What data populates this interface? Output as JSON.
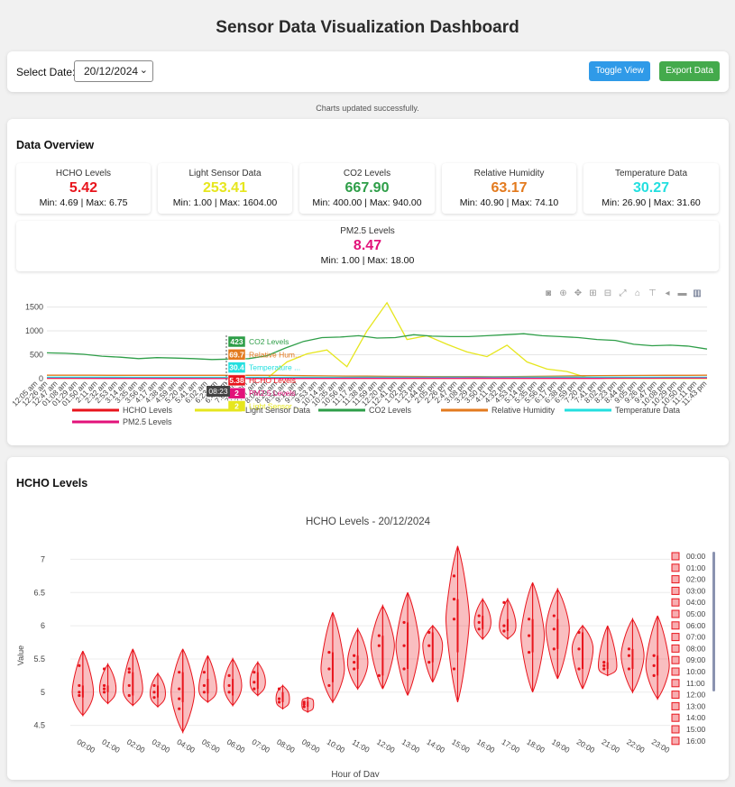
{
  "page": {
    "title": "Sensor Data Visualization Dashboard",
    "date_label": "Select Date:",
    "date_value": "20/12/2024",
    "toggle_label": "Toggle View",
    "export_label": "Export Data",
    "status": "Charts updated successfully."
  },
  "overview": {
    "title": "Data Overview",
    "stats": [
      {
        "label": "HCHO Levels",
        "value": "5.42",
        "minmax": "Min: 4.69 | Max: 6.75",
        "color": "#e8141c"
      },
      {
        "label": "Light Sensor Data",
        "value": "253.41",
        "minmax": "Min: 1.00 | Max: 1604.00",
        "color": "#e6e61e"
      },
      {
        "label": "CO2 Levels",
        "value": "667.90",
        "minmax": "Min: 400.00 | Max: 940.00",
        "color": "#2e9e48"
      },
      {
        "label": "Relative Humidity",
        "value": "63.17",
        "minmax": "Min: 40.90 | Max: 74.10",
        "color": "#e37a1e"
      },
      {
        "label": "Temperature Data",
        "value": "30.27",
        "minmax": "Min: 26.90 | Max: 31.60",
        "color": "#23dfdf"
      },
      {
        "label": "PM2.5 Levels",
        "value": "8.47",
        "minmax": "Min: 1.00 | Max: 18.00",
        "color": "#e2127a"
      }
    ]
  },
  "toolbar_icons": [
    "camera-icon",
    "zoom-icon",
    "pan-icon",
    "zoom-in-icon",
    "zoom-out-icon",
    "autoscale-icon",
    "home-icon",
    "spike-icon",
    "hover-closest-icon",
    "hover-compare-icon",
    "plotly-logo-icon"
  ],
  "chart_data": [
    {
      "type": "line",
      "y_ticks": [
        "0",
        "500",
        "1000",
        "1500"
      ],
      "ylim": [
        0,
        1700
      ],
      "x_tick_labels": [
        "12:05 am",
        "12:26 am",
        "12:47 am",
        "01:08 am",
        "01:29 am",
        "01:50 am",
        "2:11 am",
        "2:32 am",
        "2:53 am",
        "3:14 am",
        "3:35 am",
        "3:56 am",
        "4:17 am",
        "4:38 am",
        "4:59 am",
        "5:20 am",
        "5:41 am",
        "6:02 am",
        "6:23 am",
        "6:44 am",
        "7:05 am",
        "7:26 am",
        "7:47 am",
        "8:08 am",
        "8:29 am",
        "8:50 am",
        "9:11 am",
        "9:32 am",
        "9:53 am",
        "10:14 am",
        "10:35 am",
        "10:56 am",
        "11:17 am",
        "11:38 am",
        "11:59 am",
        "12:20 pm",
        "12:41 pm",
        "1:02 pm",
        "1:23 pm",
        "1:44 pm",
        "2:05 pm",
        "2:26 pm",
        "2:47 pm",
        "3:08 pm",
        "3:29 pm",
        "3:50 pm",
        "4:11 pm",
        "4:32 pm",
        "4:53 pm",
        "5:14 pm",
        "5:35 pm",
        "5:56 pm",
        "6:17 pm",
        "6:38 pm",
        "6:59 pm",
        "7:20 pm",
        "7:41 pm",
        "8:02 pm",
        "8:23 pm",
        "8:44 pm",
        "9:05 pm",
        "9:26 pm",
        "9:47 pm",
        "10:08 pm",
        "10:29 pm",
        "10:50 pm",
        "11:11 pm",
        "11:43 pm"
      ],
      "series": [
        {
          "name": "HCHO Levels",
          "color": "#e8141c",
          "values": [
            5.2,
            5.1,
            5.0,
            5.0,
            4.9,
            5.0,
            5.1,
            5.2,
            5.0,
            4.9,
            4.8,
            5.3,
            5.5,
            5.6,
            5.8,
            6.0,
            6.2,
            6.0,
            5.9,
            5.6,
            5.4,
            5.2,
            5.3,
            5.2
          ]
        },
        {
          "name": "Light Sensor Data",
          "color": "#e6e61e",
          "values": [
            1,
            1,
            1,
            1,
            1,
            1,
            1,
            1,
            1,
            1,
            1,
            2,
            350,
            520,
            600,
            250,
            1000,
            1590,
            820,
            900,
            720,
            560,
            460,
            700,
            350,
            200,
            150,
            20,
            5,
            2,
            1,
            1,
            1,
            1
          ]
        },
        {
          "name": "CO2 Levels",
          "color": "#2e9e48",
          "values": [
            540,
            530,
            510,
            470,
            450,
            420,
            440,
            430,
            420,
            400,
            410,
            420,
            480,
            640,
            780,
            860,
            870,
            900,
            850,
            860,
            920,
            890,
            880,
            880,
            900,
            920,
            940,
            900,
            880,
            860,
            820,
            800,
            720,
            690,
            700,
            680,
            620
          ]
        },
        {
          "name": "Relative Humidity",
          "color": "#e37a1e",
          "values": [
            72,
            72,
            71,
            70,
            70,
            69,
            70,
            70,
            70,
            69,
            69,
            68,
            62,
            58,
            55,
            52,
            50,
            48,
            45,
            44,
            43,
            42,
            45,
            50,
            55,
            60,
            64,
            66,
            68,
            69,
            70,
            71
          ]
        },
        {
          "name": "Temperature Data",
          "color": "#23dfdf",
          "values": [
            30,
            29.8,
            29.5,
            29.2,
            29,
            28.8,
            28.5,
            28.2,
            28,
            28.5,
            29,
            29.8,
            30.4,
            31,
            31.2,
            31.5,
            31.6,
            31.4,
            31.2,
            31,
            30.8,
            30.5,
            30.3,
            30.1
          ]
        },
        {
          "name": "PM2.5 Levels",
          "color": "#e2127a",
          "values": [
            8,
            7,
            6,
            5,
            4,
            3,
            2,
            2,
            3,
            5,
            7,
            9,
            10,
            11,
            12,
            13,
            12,
            10,
            9,
            8,
            9,
            10,
            11,
            12
          ]
        }
      ],
      "hover_labels": [
        {
          "text": "423",
          "color": "#2e9e48",
          "series": "CO2 Levels"
        },
        {
          "text": "69.7",
          "color": "#e37a1e",
          "series": "Relative Hum..."
        },
        {
          "text": "30.4",
          "color": "#23dfdf",
          "series": "Temperature ..."
        },
        {
          "text": "5.38",
          "color": "#e8141c",
          "series": "HCHO Levels"
        },
        {
          "text": "2",
          "color": "#e2127a",
          "series": "PM2.5 Levels"
        },
        {
          "text": "2",
          "color": "#e6e61e",
          "series": "Light Sensor ..."
        }
      ],
      "hover_time": "08:23"
    },
    {
      "type": "violin",
      "section_title": "HCHO Levels",
      "title": "HCHO Levels - 20/12/2024",
      "xlabel": "Hour of Day",
      "ylabel": "Value",
      "ylim": [
        4.4,
        7.25
      ],
      "y_ticks": [
        4.5,
        5,
        5.5,
        6,
        6.5,
        7
      ],
      "y_tick_labels": [
        "4.5",
        "5",
        "5.5",
        "6",
        "6.5",
        "7"
      ],
      "categories": [
        "00:00",
        "01:00",
        "02:00",
        "03:00",
        "04:00",
        "05:00",
        "06:00",
        "07:00",
        "08:00",
        "09:00",
        "10:00",
        "11:00",
        "12:00",
        "13:00",
        "14:00",
        "15:00",
        "16:00",
        "17:00",
        "18:00",
        "19:00",
        "20:00",
        "21:00",
        "22:00",
        "23:00"
      ],
      "legend_items": [
        "00:00",
        "01:00",
        "02:00",
        "03:00",
        "04:00",
        "05:00",
        "06:00",
        "07:00",
        "08:00",
        "09:00",
        "10:00",
        "11:00",
        "12:00",
        "13:00",
        "14:00",
        "15:00",
        "16:00"
      ],
      "color": "#e8141c",
      "violins": [
        {
          "min": 4.65,
          "q1": 4.92,
          "median": 5.0,
          "q3": 5.1,
          "max": 5.62,
          "points": [
            4.95,
            5.0,
            5.1,
            5.4
          ]
        },
        {
          "min": 4.83,
          "q1": 5.0,
          "median": 5.05,
          "q3": 5.1,
          "max": 5.42,
          "points": [
            5.0,
            5.05,
            5.1,
            5.35
          ]
        },
        {
          "min": 4.8,
          "q1": 4.95,
          "median": 5.05,
          "q3": 5.3,
          "max": 5.65,
          "points": [
            4.95,
            5.1,
            5.3,
            5.35
          ]
        },
        {
          "min": 4.78,
          "q1": 4.92,
          "median": 4.98,
          "q3": 5.1,
          "max": 5.28,
          "points": [
            4.92,
            5.0,
            5.1
          ]
        },
        {
          "min": 4.4,
          "q1": 4.85,
          "median": 5.0,
          "q3": 5.3,
          "max": 5.65,
          "points": [
            4.75,
            4.9,
            5.05,
            5.3
          ]
        },
        {
          "min": 4.85,
          "q1": 4.98,
          "median": 5.05,
          "q3": 5.2,
          "max": 5.55,
          "points": [
            5.0,
            5.1,
            5.3
          ]
        },
        {
          "min": 4.8,
          "q1": 4.95,
          "median": 5.1,
          "q3": 5.2,
          "max": 5.5,
          "points": [
            5.0,
            5.1,
            5.25
          ]
        },
        {
          "min": 4.95,
          "q1": 5.05,
          "median": 5.15,
          "q3": 5.3,
          "max": 5.45,
          "points": [
            5.05,
            5.15,
            5.3
          ]
        },
        {
          "min": 4.75,
          "q1": 4.85,
          "median": 4.9,
          "q3": 5.0,
          "max": 5.1,
          "points": [
            4.85,
            4.9,
            5.05
          ]
        },
        {
          "min": 4.7,
          "q1": 4.78,
          "median": 4.82,
          "q3": 4.86,
          "max": 4.92,
          "points": [
            4.78,
            4.82,
            4.85
          ]
        },
        {
          "min": 4.85,
          "q1": 5.15,
          "median": 5.35,
          "q3": 5.6,
          "max": 6.2,
          "points": [
            5.1,
            5.35,
            5.6
          ]
        },
        {
          "min": 5.05,
          "q1": 5.35,
          "median": 5.45,
          "q3": 5.55,
          "max": 5.95,
          "points": [
            5.35,
            5.45,
            5.55
          ]
        },
        {
          "min": 5.05,
          "q1": 5.25,
          "median": 5.7,
          "q3": 5.85,
          "max": 6.3,
          "points": [
            5.25,
            5.7,
            5.85
          ]
        },
        {
          "min": 4.95,
          "q1": 5.35,
          "median": 5.7,
          "q3": 6.05,
          "max": 6.5,
          "points": [
            5.35,
            5.7,
            6.05
          ]
        },
        {
          "min": 5.15,
          "q1": 5.45,
          "median": 5.7,
          "q3": 5.9,
          "max": 6.0,
          "points": [
            5.45,
            5.7,
            5.9
          ]
        },
        {
          "min": 4.85,
          "q1": 5.6,
          "median": 6.1,
          "q3": 6.4,
          "max": 7.2,
          "points": [
            5.35,
            6.1,
            6.4,
            6.75
          ]
        },
        {
          "min": 5.8,
          "q1": 5.95,
          "median": 6.05,
          "q3": 6.15,
          "max": 6.4,
          "points": [
            5.95,
            6.05,
            6.15
          ]
        },
        {
          "min": 5.8,
          "q1": 5.92,
          "median": 6.0,
          "q3": 6.1,
          "max": 6.4,
          "points": [
            5.92,
            6.0,
            6.35
          ]
        },
        {
          "min": 5.0,
          "q1": 5.6,
          "median": 5.85,
          "q3": 6.1,
          "max": 6.65,
          "points": [
            5.6,
            5.85,
            6.1
          ]
        },
        {
          "min": 5.2,
          "q1": 5.65,
          "median": 5.95,
          "q3": 6.1,
          "max": 6.55,
          "points": [
            5.65,
            5.95,
            6.15
          ]
        },
        {
          "min": 5.05,
          "q1": 5.35,
          "median": 5.65,
          "q3": 5.9,
          "max": 6.0,
          "points": [
            5.35,
            5.65,
            5.9
          ]
        },
        {
          "min": 5.25,
          "q1": 5.35,
          "median": 5.4,
          "q3": 5.45,
          "max": 6.0,
          "points": [
            5.35,
            5.4,
            5.45
          ]
        },
        {
          "min": 5.0,
          "q1": 5.35,
          "median": 5.55,
          "q3": 5.65,
          "max": 6.1,
          "points": [
            5.35,
            5.55,
            5.65
          ]
        },
        {
          "min": 4.9,
          "q1": 5.25,
          "median": 5.4,
          "q3": 5.55,
          "max": 6.15,
          "points": [
            5.25,
            5.4,
            5.55
          ]
        }
      ]
    }
  ]
}
